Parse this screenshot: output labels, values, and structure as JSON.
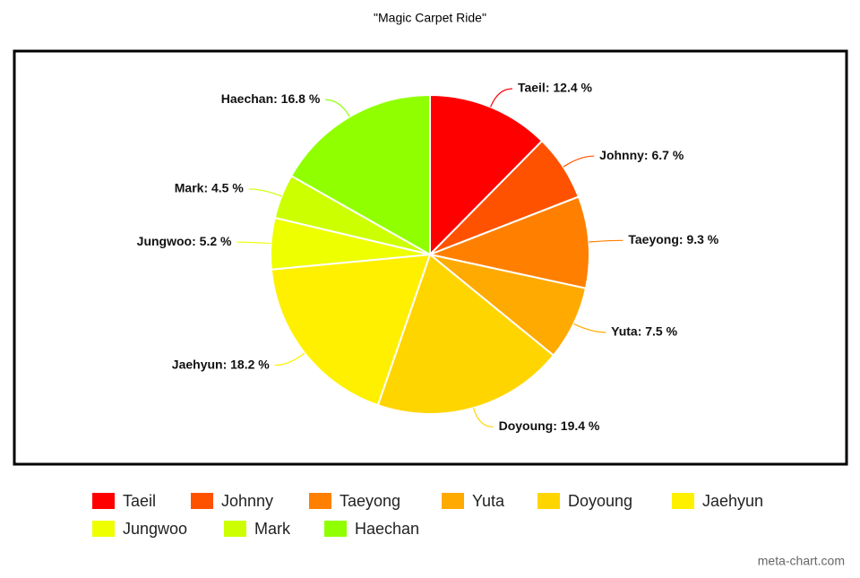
{
  "chart_data": {
    "type": "pie",
    "title": "\"Magic Carpet Ride\"",
    "categories": [
      "Taeil",
      "Johnny",
      "Taeyong",
      "Yuta",
      "Doyoung",
      "Jaehyun",
      "Jungwoo",
      "Mark",
      "Haechan"
    ],
    "values": [
      12.4,
      6.7,
      9.3,
      7.5,
      19.4,
      18.2,
      5.2,
      4.5,
      16.8
    ],
    "value_labels": [
      "Taeil: 12.4 %",
      "Johnny: 6.7 %",
      "Taeyong: 9.3 %",
      "Yuta: 7.5 %",
      "Doyoung: 19.4 %",
      "Jaehyun: 18.2 %",
      "Jungwoo: 5.2 %",
      "Mark: 4.5 %",
      "Haechan: 16.8 %"
    ],
    "colors": [
      "#ff0000",
      "#ff5200",
      "#ff8000",
      "#ffaa00",
      "#ffd500",
      "#fff000",
      "#eeff00",
      "#ccff00",
      "#90ff00"
    ],
    "legend": "bottom",
    "watermark": "meta-chart.com"
  }
}
